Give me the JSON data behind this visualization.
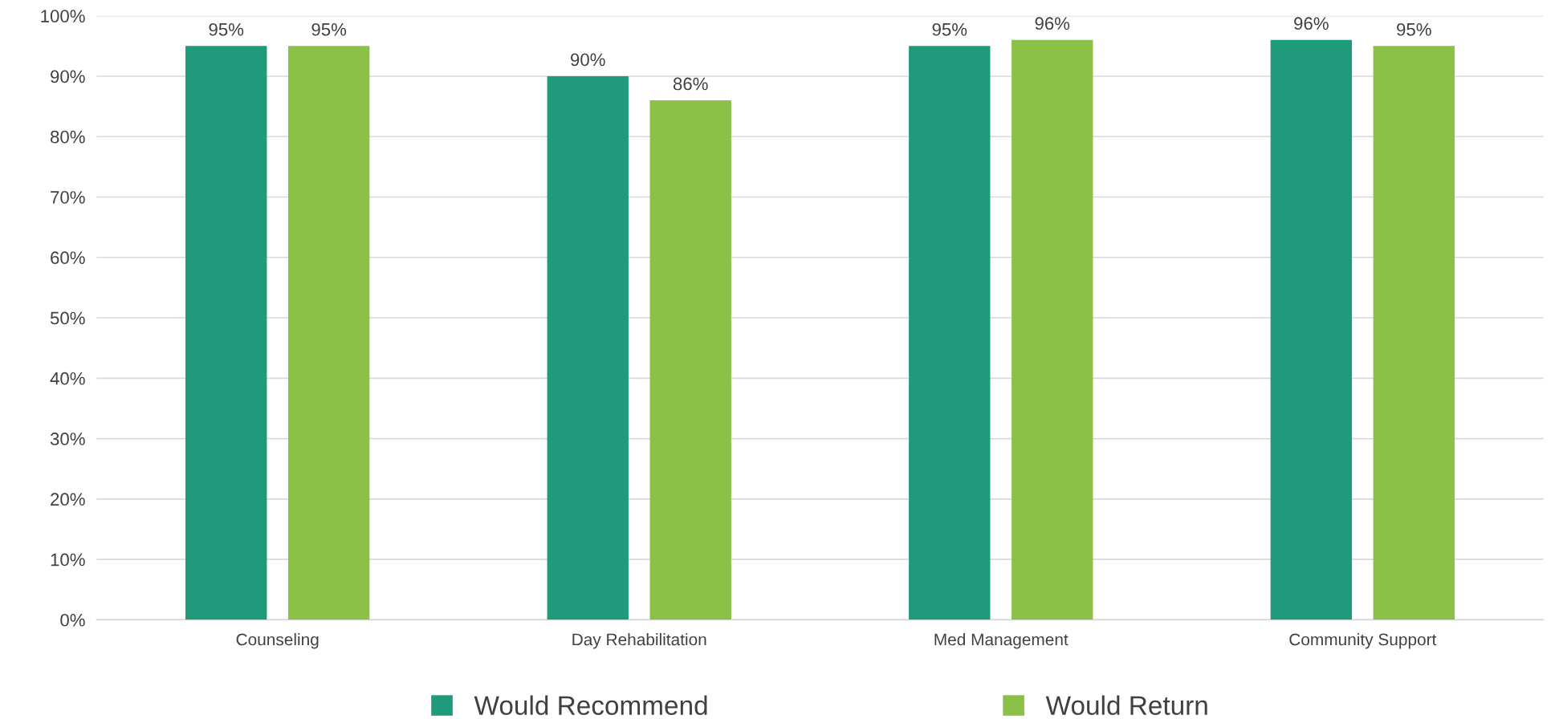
{
  "chart_data": {
    "type": "bar",
    "categories": [
      "Counseling",
      "Day Rehabilitation",
      "Med Management",
      "Community Support"
    ],
    "series": [
      {
        "name": "Would Recommend",
        "color": "#1f9b7b",
        "values": [
          95,
          90,
          95,
          96
        ],
        "value_labels": [
          "95%",
          "90%",
          "95%",
          "96%"
        ]
      },
      {
        "name": "Would Return",
        "color": "#8bc146",
        "values": [
          95,
          86,
          96,
          95
        ],
        "value_labels": [
          "95%",
          "86%",
          "96%",
          "95%"
        ]
      }
    ],
    "ylim": [
      0,
      100
    ],
    "yticks": [
      {
        "value": 0,
        "label": "0%"
      },
      {
        "value": 10,
        "label": "10%"
      },
      {
        "value": 20,
        "label": "20%"
      },
      {
        "value": 30,
        "label": "30%"
      },
      {
        "value": 40,
        "label": "40%"
      },
      {
        "value": 50,
        "label": "50%"
      },
      {
        "value": 60,
        "label": "60%"
      },
      {
        "value": 70,
        "label": "70%"
      },
      {
        "value": 80,
        "label": "80%"
      },
      {
        "value": 90,
        "label": "90%"
      },
      {
        "value": 100,
        "label": "100%"
      }
    ],
    "grid": "y",
    "legend": "bottom"
  }
}
